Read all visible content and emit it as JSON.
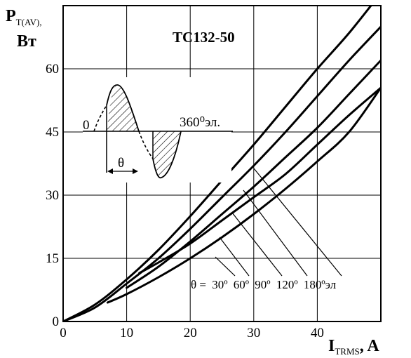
{
  "chart_data": {
    "type": "line",
    "title": "ТС132-50",
    "ylabel_main": "P",
    "ylabel_sub": "T(AV),",
    "ylabel_unit": "Вт",
    "xlabel_main": "I",
    "xlabel_sub": "TRMS",
    "xlabel_unit": ", A",
    "xlim": [
      0,
      50
    ],
    "ylim": [
      0,
      75
    ],
    "x_ticks": [
      0,
      10,
      20,
      30,
      40
    ],
    "y_ticks": [
      0,
      15,
      30,
      45,
      60
    ],
    "grid": true,
    "series": [
      {
        "name": "180ºэл",
        "points": [
          [
            0,
            0
          ],
          [
            5,
            4.0
          ],
          [
            10,
            10.0
          ],
          [
            15,
            17.0
          ],
          [
            20,
            25.0
          ],
          [
            25,
            33.5
          ],
          [
            30,
            42.0
          ],
          [
            35,
            51.0
          ],
          [
            40,
            60.0
          ],
          [
            45,
            68.5
          ],
          [
            50,
            78.0
          ]
        ]
      },
      {
        "name": "120º",
        "points": [
          [
            0,
            0
          ],
          [
            5,
            3.3
          ],
          [
            10,
            9.0
          ],
          [
            15,
            15.0
          ],
          [
            20,
            22.0
          ],
          [
            25,
            29.5
          ],
          [
            30,
            37.0
          ],
          [
            35,
            45.0
          ],
          [
            40,
            53.5
          ],
          [
            45,
            62.0
          ],
          [
            50,
            70.0
          ]
        ]
      },
      {
        "name": "90º",
        "points": [
          [
            10,
            8.0
          ],
          [
            15,
            13.0
          ],
          [
            20,
            19.0
          ],
          [
            25,
            25.5
          ],
          [
            30,
            32.0
          ],
          [
            35,
            39.0
          ],
          [
            40,
            46.0
          ],
          [
            45,
            54.0
          ],
          [
            50,
            62.0
          ]
        ]
      },
      {
        "name": "60º",
        "points": [
          [
            7,
            4.5
          ],
          [
            10,
            6.5
          ],
          [
            15,
            10.5
          ],
          [
            20,
            15.0
          ],
          [
            25,
            20.0
          ],
          [
            30,
            25.5
          ],
          [
            35,
            31.5
          ],
          [
            40,
            38.0
          ],
          [
            45,
            45.0
          ],
          [
            50,
            55.5
          ]
        ]
      },
      {
        "name": "30º",
        "points": [
          [
            12,
            11.5
          ],
          [
            15,
            14.0
          ],
          [
            20,
            18.5
          ],
          [
            25,
            24.0
          ],
          [
            30,
            29.5
          ],
          [
            35,
            35.0
          ],
          [
            40,
            42.0
          ],
          [
            45,
            49.0
          ],
          [
            50,
            55.5
          ]
        ]
      }
    ],
    "legend_prefix": "θ =",
    "legend_labels": [
      "30º",
      "60º",
      "90º",
      "120º",
      "180ºэл"
    ],
    "inset": {
      "zero_label": "0",
      "end_label": "360⁰эл.",
      "theta_label": "θ"
    }
  }
}
